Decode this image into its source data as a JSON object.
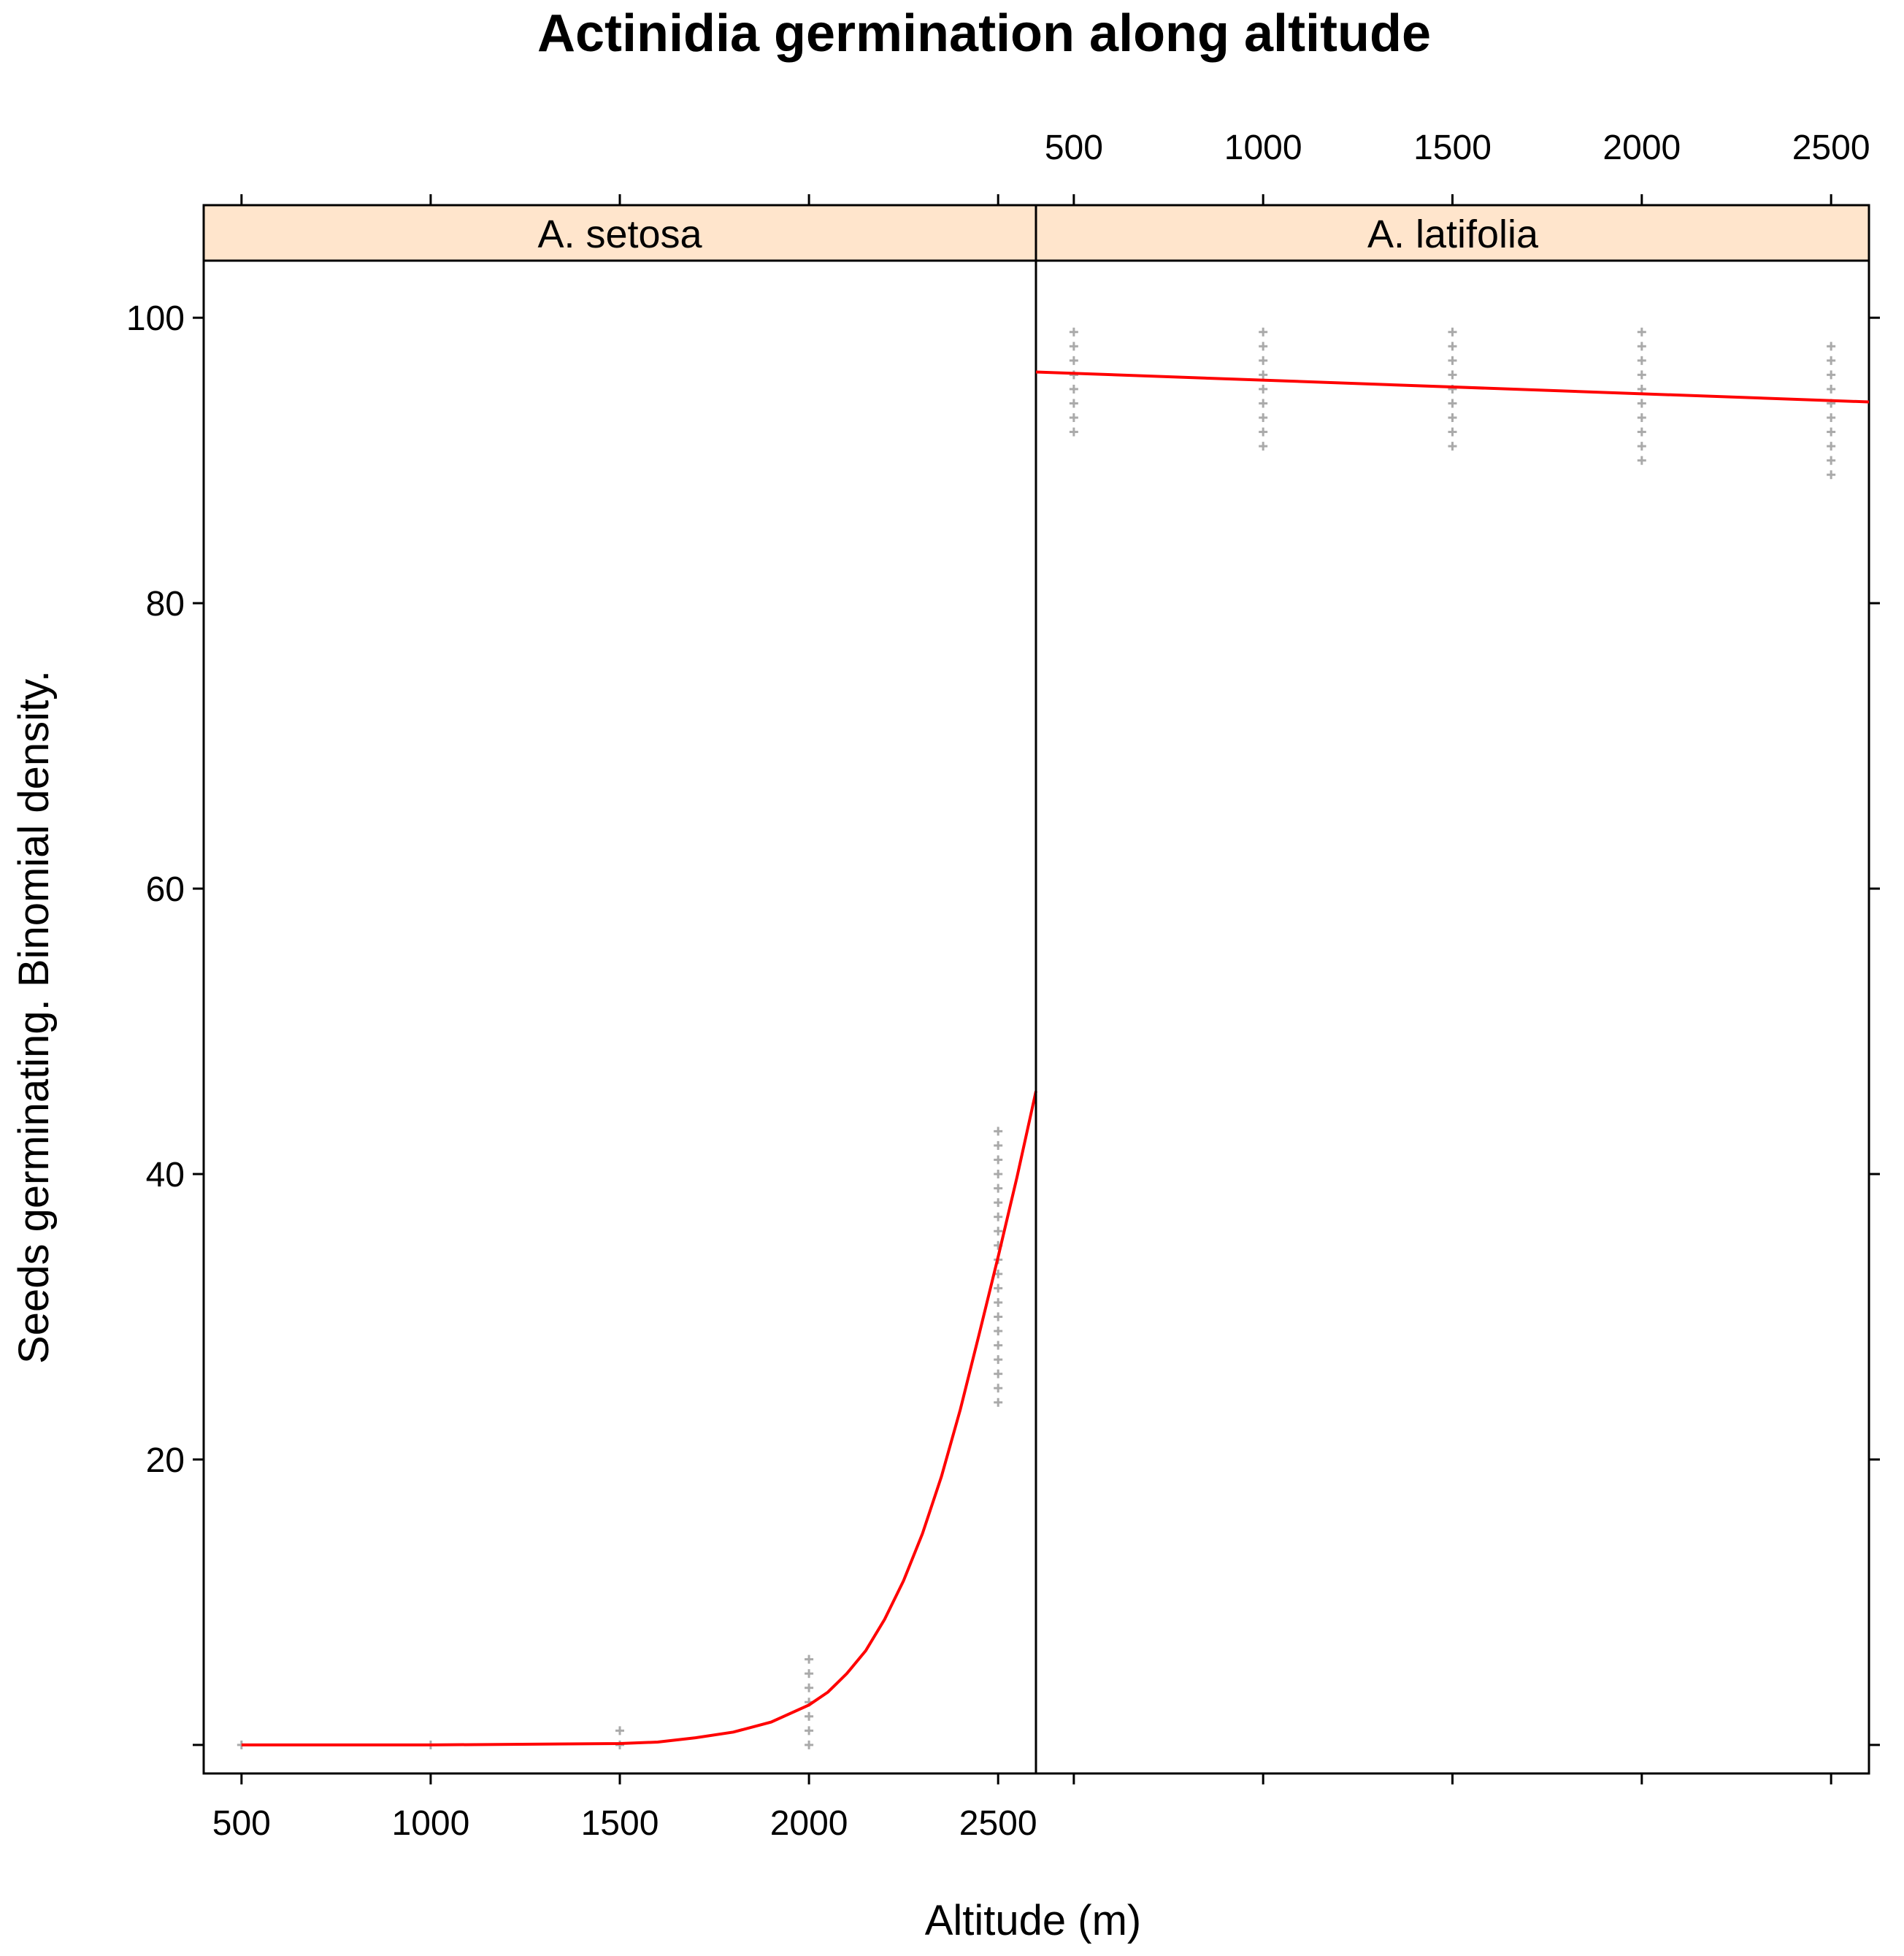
{
  "chart_data": {
    "type": "scatter",
    "title": "Actinidia germination along altitude",
    "xlabel": "Altitude (m)",
    "ylabel": "Seeds germinating. Binomial density.",
    "xlim": [
      400,
      2600
    ],
    "ylim": [
      -2,
      104
    ],
    "xticks": [
      500,
      1000,
      1500,
      2000,
      2500
    ],
    "yticks": [
      20,
      40,
      60,
      80,
      100
    ],
    "grid": false,
    "legend": "none",
    "colors": {
      "points": "#aaaaaa",
      "fit": "#ff0000",
      "strip": "#ffe5cc",
      "frame": "#000000"
    },
    "panels": [
      {
        "strip": "A. setosa",
        "points": [
          {
            "x": 500,
            "y": [
              0
            ]
          },
          {
            "x": 1000,
            "y": [
              0
            ]
          },
          {
            "x": 1500,
            "y": [
              0,
              1
            ]
          },
          {
            "x": 2000,
            "y": [
              0,
              1,
              2,
              3,
              4,
              5,
              6
            ]
          },
          {
            "x": 2500,
            "y": [
              24,
              25,
              26,
              27,
              28,
              29,
              30,
              31,
              32,
              33,
              34,
              35,
              36,
              37,
              38,
              39,
              40,
              41,
              42,
              43
            ]
          }
        ],
        "fit": {
          "x": [
            500,
            1000,
            1500,
            1600,
            1700,
            1800,
            1900,
            2000,
            2050,
            2100,
            2150,
            2200,
            2250,
            2300,
            2350,
            2400,
            2450,
            2500,
            2550,
            2600
          ],
          "y": [
            0,
            0,
            0.1,
            0.2,
            0.5,
            0.9,
            1.6,
            2.8,
            3.7,
            5.0,
            6.6,
            8.8,
            11.5,
            14.8,
            18.8,
            23.5,
            28.8,
            34.2,
            39.8,
            45.8
          ]
        }
      },
      {
        "strip": "A. latifolia",
        "points": [
          {
            "x": 500,
            "y": [
              92,
              93,
              94,
              95,
              96,
              97,
              98,
              99
            ]
          },
          {
            "x": 1000,
            "y": [
              91,
              92,
              93,
              94,
              95,
              96,
              97,
              98,
              99
            ]
          },
          {
            "x": 1500,
            "y": [
              91,
              92,
              93,
              94,
              95,
              96,
              97,
              98,
              99
            ]
          },
          {
            "x": 2000,
            "y": [
              90,
              91,
              92,
              93,
              94,
              95,
              96,
              97,
              98,
              99
            ]
          },
          {
            "x": 2500,
            "y": [
              89,
              90,
              91,
              92,
              93,
              94,
              95,
              96,
              97,
              98
            ]
          }
        ],
        "fit": {
          "x": [
            400,
            2600
          ],
          "y": [
            96.2,
            94.1
          ]
        }
      }
    ]
  }
}
